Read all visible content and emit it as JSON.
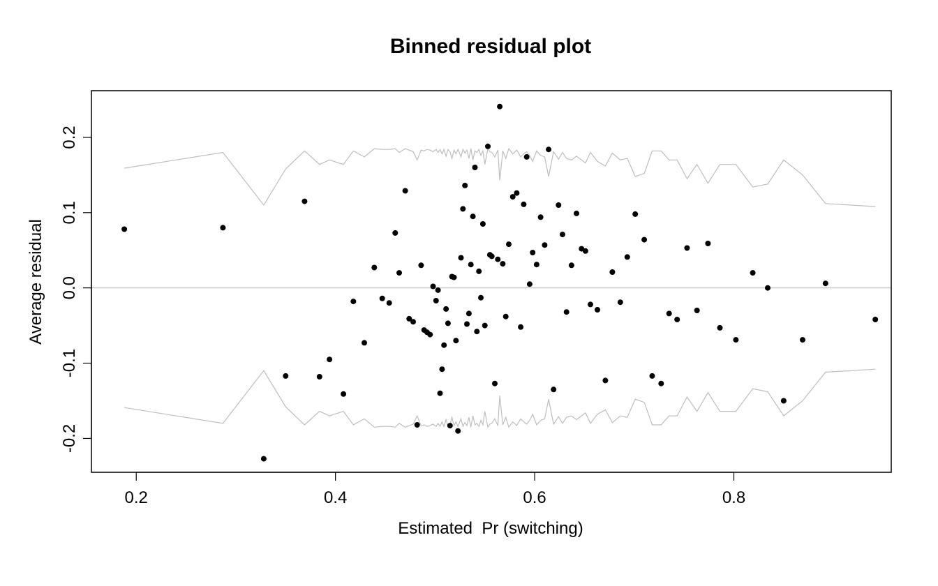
{
  "chart_data": {
    "type": "scatter",
    "title": "Binned residual plot",
    "xlabel": "Estimated  Pr (switching)",
    "ylabel": "Average residual",
    "xlim": [
      0.155,
      0.958
    ],
    "ylim": [
      -0.245,
      0.262
    ],
    "xticks": [
      0.2,
      0.4,
      0.6,
      0.8
    ],
    "xtick_labels": [
      "0.2",
      "0.4",
      "0.6",
      "0.8"
    ],
    "yticks": [
      -0.2,
      -0.1,
      0.0,
      0.1,
      0.2
    ],
    "ytick_labels": [
      "-0.2",
      "-0.1",
      "0.0",
      "0.1",
      "0.2"
    ],
    "grid": false,
    "legend": "none",
    "colors": {
      "points": "#000000",
      "bands": "#bebebe",
      "zero_line": "#bebebe",
      "frame": "#000000"
    },
    "reference_line_y": 0,
    "points": [
      {
        "x": 0.188,
        "y": 0.078
      },
      {
        "x": 0.287,
        "y": 0.08
      },
      {
        "x": 0.328,
        "y": -0.227
      },
      {
        "x": 0.35,
        "y": -0.117
      },
      {
        "x": 0.369,
        "y": 0.115
      },
      {
        "x": 0.384,
        "y": -0.118
      },
      {
        "x": 0.394,
        "y": -0.095
      },
      {
        "x": 0.408,
        "y": -0.141
      },
      {
        "x": 0.418,
        "y": -0.018
      },
      {
        "x": 0.429,
        "y": -0.073
      },
      {
        "x": 0.439,
        "y": 0.027
      },
      {
        "x": 0.447,
        "y": -0.014
      },
      {
        "x": 0.454,
        "y": -0.02
      },
      {
        "x": 0.46,
        "y": 0.073
      },
      {
        "x": 0.464,
        "y": 0.02
      },
      {
        "x": 0.47,
        "y": 0.129
      },
      {
        "x": 0.474,
        "y": -0.041
      },
      {
        "x": 0.478,
        "y": -0.045
      },
      {
        "x": 0.482,
        "y": -0.182
      },
      {
        "x": 0.486,
        "y": 0.03
      },
      {
        "x": 0.489,
        "y": -0.056
      },
      {
        "x": 0.492,
        "y": -0.059
      },
      {
        "x": 0.495,
        "y": -0.062
      },
      {
        "x": 0.498,
        "y": 0.002
      },
      {
        "x": 0.501,
        "y": -0.017
      },
      {
        "x": 0.503,
        "y": -0.003
      },
      {
        "x": 0.505,
        "y": -0.14
      },
      {
        "x": 0.507,
        "y": -0.108
      },
      {
        "x": 0.509,
        "y": -0.076
      },
      {
        "x": 0.511,
        "y": -0.028
      },
      {
        "x": 0.513,
        "y": -0.047
      },
      {
        "x": 0.515,
        "y": -0.183
      },
      {
        "x": 0.517,
        "y": 0.015
      },
      {
        "x": 0.519,
        "y": 0.014
      },
      {
        "x": 0.521,
        "y": -0.07
      },
      {
        "x": 0.523,
        "y": -0.19
      },
      {
        "x": 0.526,
        "y": 0.04
      },
      {
        "x": 0.528,
        "y": 0.105
      },
      {
        "x": 0.53,
        "y": 0.136
      },
      {
        "x": 0.532,
        "y": -0.048
      },
      {
        "x": 0.534,
        "y": -0.034
      },
      {
        "x": 0.536,
        "y": 0.031
      },
      {
        "x": 0.538,
        "y": 0.095
      },
      {
        "x": 0.54,
        "y": 0.16
      },
      {
        "x": 0.542,
        "y": -0.058
      },
      {
        "x": 0.544,
        "y": 0.022
      },
      {
        "x": 0.546,
        "y": -0.013
      },
      {
        "x": 0.548,
        "y": 0.085
      },
      {
        "x": 0.55,
        "y": -0.05
      },
      {
        "x": 0.553,
        "y": 0.188
      },
      {
        "x": 0.555,
        "y": 0.044
      },
      {
        "x": 0.557,
        "y": 0.042
      },
      {
        "x": 0.56,
        "y": -0.127
      },
      {
        "x": 0.563,
        "y": 0.038
      },
      {
        "x": 0.565,
        "y": 0.241
      },
      {
        "x": 0.568,
        "y": 0.032
      },
      {
        "x": 0.571,
        "y": -0.038
      },
      {
        "x": 0.574,
        "y": 0.058
      },
      {
        "x": 0.578,
        "y": 0.121
      },
      {
        "x": 0.582,
        "y": 0.126
      },
      {
        "x": 0.586,
        "y": -0.052
      },
      {
        "x": 0.589,
        "y": 0.111
      },
      {
        "x": 0.592,
        "y": 0.174
      },
      {
        "x": 0.595,
        "y": 0.005
      },
      {
        "x": 0.598,
        "y": 0.047
      },
      {
        "x": 0.602,
        "y": 0.031
      },
      {
        "x": 0.606,
        "y": 0.094
      },
      {
        "x": 0.61,
        "y": 0.057
      },
      {
        "x": 0.614,
        "y": 0.184
      },
      {
        "x": 0.619,
        "y": -0.135
      },
      {
        "x": 0.624,
        "y": 0.11
      },
      {
        "x": 0.628,
        "y": 0.071
      },
      {
        "x": 0.632,
        "y": -0.032
      },
      {
        "x": 0.637,
        "y": 0.03
      },
      {
        "x": 0.642,
        "y": 0.099
      },
      {
        "x": 0.647,
        "y": 0.052
      },
      {
        "x": 0.651,
        "y": 0.049
      },
      {
        "x": 0.656,
        "y": -0.022
      },
      {
        "x": 0.663,
        "y": -0.029
      },
      {
        "x": 0.671,
        "y": -0.123
      },
      {
        "x": 0.678,
        "y": 0.021
      },
      {
        "x": 0.686,
        "y": -0.019
      },
      {
        "x": 0.693,
        "y": 0.041
      },
      {
        "x": 0.701,
        "y": 0.098
      },
      {
        "x": 0.71,
        "y": 0.064
      },
      {
        "x": 0.718,
        "y": -0.117
      },
      {
        "x": 0.727,
        "y": -0.127
      },
      {
        "x": 0.735,
        "y": -0.034
      },
      {
        "x": 0.743,
        "y": -0.042
      },
      {
        "x": 0.753,
        "y": 0.053
      },
      {
        "x": 0.763,
        "y": -0.03
      },
      {
        "x": 0.774,
        "y": 0.059
      },
      {
        "x": 0.786,
        "y": -0.053
      },
      {
        "x": 0.802,
        "y": -0.069
      },
      {
        "x": 0.819,
        "y": 0.02
      },
      {
        "x": 0.834,
        "y": 0.0
      },
      {
        "x": 0.85,
        "y": -0.15
      },
      {
        "x": 0.869,
        "y": -0.069
      },
      {
        "x": 0.892,
        "y": 0.006
      },
      {
        "x": 0.942,
        "y": -0.042
      }
    ],
    "band": {
      "x": [
        0.188,
        0.287,
        0.328,
        0.35,
        0.369,
        0.384,
        0.394,
        0.408,
        0.418,
        0.429,
        0.439,
        0.447,
        0.454,
        0.46,
        0.464,
        0.47,
        0.474,
        0.478,
        0.482,
        0.486,
        0.489,
        0.492,
        0.495,
        0.498,
        0.501,
        0.503,
        0.505,
        0.507,
        0.509,
        0.511,
        0.513,
        0.515,
        0.517,
        0.519,
        0.521,
        0.523,
        0.526,
        0.528,
        0.53,
        0.532,
        0.534,
        0.536,
        0.538,
        0.54,
        0.542,
        0.544,
        0.546,
        0.548,
        0.55,
        0.553,
        0.555,
        0.557,
        0.56,
        0.563,
        0.565,
        0.568,
        0.571,
        0.574,
        0.578,
        0.582,
        0.586,
        0.589,
        0.592,
        0.595,
        0.598,
        0.602,
        0.606,
        0.61,
        0.614,
        0.619,
        0.624,
        0.628,
        0.632,
        0.637,
        0.642,
        0.647,
        0.651,
        0.656,
        0.663,
        0.671,
        0.678,
        0.686,
        0.693,
        0.701,
        0.71,
        0.718,
        0.727,
        0.735,
        0.743,
        0.753,
        0.763,
        0.774,
        0.786,
        0.802,
        0.819,
        0.834,
        0.85,
        0.869,
        0.892,
        0.942
      ],
      "half_width": [
        0.159,
        0.18,
        0.11,
        0.158,
        0.182,
        0.164,
        0.17,
        0.164,
        0.182,
        0.174,
        0.185,
        0.184,
        0.184,
        0.185,
        0.18,
        0.185,
        0.183,
        0.181,
        0.17,
        0.183,
        0.182,
        0.184,
        0.183,
        0.181,
        0.184,
        0.18,
        0.184,
        0.178,
        0.184,
        0.175,
        0.184,
        0.181,
        0.172,
        0.183,
        0.178,
        0.184,
        0.174,
        0.184,
        0.179,
        0.183,
        0.172,
        0.185,
        0.17,
        0.182,
        0.18,
        0.184,
        0.176,
        0.182,
        0.164,
        0.185,
        0.181,
        0.18,
        0.174,
        0.183,
        0.143,
        0.182,
        0.172,
        0.185,
        0.178,
        0.183,
        0.174,
        0.178,
        0.181,
        0.176,
        0.168,
        0.182,
        0.176,
        0.174,
        0.148,
        0.181,
        0.171,
        0.18,
        0.172,
        0.17,
        0.175,
        0.17,
        0.166,
        0.18,
        0.168,
        0.162,
        0.179,
        0.17,
        0.172,
        0.148,
        0.152,
        0.182,
        0.182,
        0.17,
        0.17,
        0.145,
        0.164,
        0.139,
        0.164,
        0.164,
        0.134,
        0.138,
        0.17,
        0.15,
        0.112,
        0.108
      ]
    }
  }
}
